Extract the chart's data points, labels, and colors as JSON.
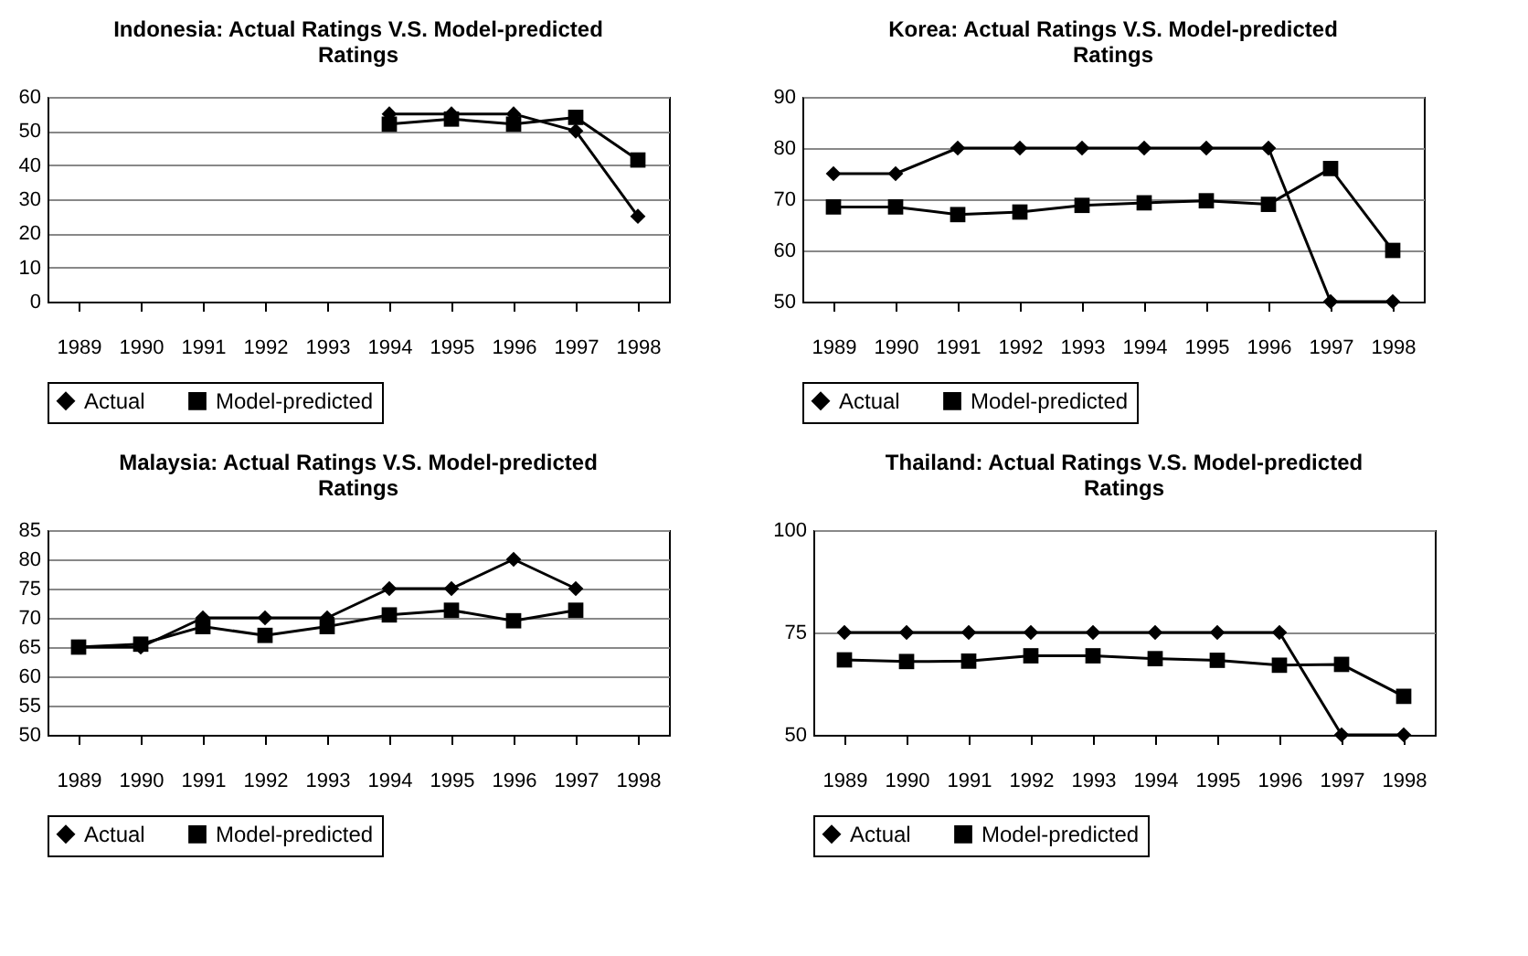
{
  "chart_data": [
    {
      "type": "line",
      "title": "Indonesia: Actual Ratings V.S. Model-predicted Ratings",
      "categories": [
        "1989",
        "1990",
        "1991",
        "1992",
        "1993",
        "1994",
        "1995",
        "1996",
        "1997",
        "1998"
      ],
      "series": [
        {
          "name": "Actual",
          "color": "#000000",
          "marker": "diamond",
          "values": [
            null,
            null,
            null,
            null,
            null,
            55,
            55,
            55,
            50,
            25
          ]
        },
        {
          "name": "Model-predicted",
          "color": "#000000",
          "marker": "square",
          "values": [
            null,
            null,
            null,
            null,
            null,
            52,
            53.5,
            52,
            54,
            41.5
          ]
        }
      ],
      "ylim": [
        0,
        60
      ],
      "yticks": [
        0,
        10,
        20,
        30,
        40,
        50,
        60
      ],
      "grid": "y",
      "legend": "bottom"
    },
    {
      "type": "line",
      "title": "Korea: Actual Ratings V.S. Model-predicted Ratings",
      "categories": [
        "1989",
        "1990",
        "1991",
        "1992",
        "1993",
        "1994",
        "1995",
        "1996",
        "1997",
        "1998"
      ],
      "series": [
        {
          "name": "Actual",
          "color": "#000000",
          "marker": "diamond",
          "values": [
            75,
            75,
            80,
            80,
            80,
            80,
            80,
            80,
            50,
            50
          ]
        },
        {
          "name": "Model-predicted",
          "color": "#000000",
          "marker": "square",
          "values": [
            68.5,
            68.5,
            67,
            67.5,
            68.8,
            69.3,
            69.7,
            69,
            76,
            60
          ]
        }
      ],
      "ylim": [
        50,
        90
      ],
      "yticks": [
        50,
        60,
        70,
        80,
        90
      ],
      "grid": "y",
      "legend": "bottom"
    },
    {
      "type": "line",
      "title": "Malaysia: Actual Ratings V.S. Model-predicted Ratings",
      "categories": [
        "1989",
        "1990",
        "1991",
        "1992",
        "1993",
        "1994",
        "1995",
        "1996",
        "1997",
        "1998"
      ],
      "series": [
        {
          "name": "Actual",
          "color": "#000000",
          "marker": "diamond",
          "values": [
            65,
            65,
            70,
            70,
            70,
            75,
            75,
            80,
            75,
            null
          ]
        },
        {
          "name": "Model-predicted",
          "color": "#000000",
          "marker": "square",
          "values": [
            65,
            65.5,
            68.5,
            67,
            68.5,
            70.5,
            71.3,
            69.5,
            71.3,
            null
          ]
        }
      ],
      "ylim": [
        50,
        85
      ],
      "yticks": [
        50,
        55,
        60,
        65,
        70,
        75,
        80,
        85
      ],
      "grid": "y",
      "legend": "bottom"
    },
    {
      "type": "line",
      "title": "Thailand: Actual Ratings V.S. Model-predicted Ratings",
      "categories": [
        "1989",
        "1990",
        "1991",
        "1992",
        "1993",
        "1994",
        "1995",
        "1996",
        "1997",
        "1998"
      ],
      "series": [
        {
          "name": "Actual",
          "color": "#000000",
          "marker": "diamond",
          "values": [
            75,
            75,
            75,
            75,
            75,
            75,
            75,
            75,
            50,
            50
          ]
        },
        {
          "name": "Model-predicted",
          "color": "#000000",
          "marker": "square",
          "values": [
            68.3,
            67.9,
            68,
            69.3,
            69.3,
            68.6,
            68.2,
            67,
            67.2,
            59.4
          ]
        }
      ],
      "ylim": [
        50,
        100
      ],
      "yticks": [
        50,
        75,
        100
      ],
      "grid": "y",
      "legend": "bottom"
    }
  ]
}
